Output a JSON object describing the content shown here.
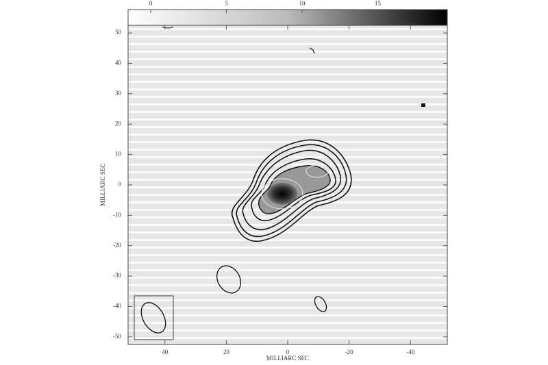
{
  "chart_data": {
    "type": "contour",
    "x_label": "MILLIARC SEC",
    "y_label": "MILLIARC SEC",
    "xlim": [
      52,
      -52
    ],
    "xticks": [
      40,
      20,
      0,
      -20,
      -40
    ],
    "ylim": [
      -52.5,
      52.5
    ],
    "yticks": [
      -50,
      -40,
      -30,
      -20,
      -10,
      0,
      10,
      20,
      30,
      40,
      50
    ],
    "colorbar": {
      "lim": [
        -1.5,
        19.6
      ],
      "ticks": [
        0,
        5,
        10,
        15
      ]
    }
  }
}
